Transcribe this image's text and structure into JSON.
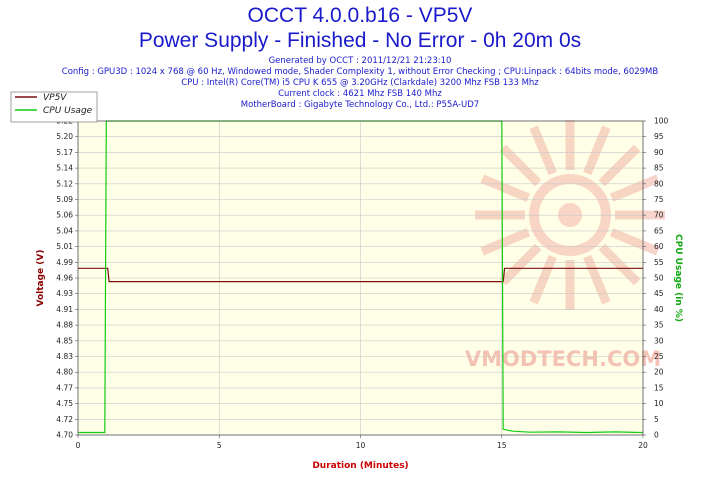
{
  "header": {
    "title": "OCCT 4.0.0.b16 - VP5V",
    "subtitle": "Power Supply - Finished - No Error - 0h 20m 0s",
    "info_lines": [
      "Generated by OCCT : 2011/12/21 21:23:10",
      "Config : GPU3D : 1024 x 768 @ 60 Hz, Windowed mode, Shader Complexity 1, without Error Checking ; CPU:Linpack : 64bits mode, 6029MB",
      "CPU : Intel(R) Core(TM) i5 CPU K 655 @ 3.20GHz (Clarkdale) 3200 Mhz FSB 133 Mhz",
      "Current clock : 4621 Mhz FSB 140 Mhz",
      "MotherBoard : Gigabyte Technology Co., Ltd.: P55A-UD7"
    ]
  },
  "watermark": {
    "text": "VMODTECH.COM",
    "color": "#f2b3a6"
  },
  "chart_data": {
    "type": "line",
    "xlabel": "Duration (Minutes)",
    "ylabel": "Voltage (V)",
    "y2label": "CPU Usage (in %)",
    "xlim": [
      0,
      20
    ],
    "ylim": [
      4.7,
      5.22
    ],
    "y2lim": [
      0,
      100
    ],
    "x_ticks": [
      0,
      5,
      10,
      15,
      20
    ],
    "y_ticks": [
      "4.70",
      "4.72",
      "4.75",
      "4.77",
      "4.80",
      "4.83",
      "4.85",
      "4.88",
      "4.91",
      "4.93",
      "4.96",
      "4.99",
      "5.01",
      "5.04",
      "5.06",
      "5.09",
      "5.12",
      "5.14",
      "5.17",
      "5.20",
      "5.22"
    ],
    "y2_ticks": [
      0,
      5,
      10,
      15,
      20,
      25,
      30,
      35,
      40,
      45,
      50,
      55,
      60,
      65,
      70,
      75,
      80,
      85,
      90,
      95,
      100
    ],
    "grid": true,
    "legend_position": "top-left",
    "colors": {
      "background": "#ffffe8",
      "grid": "#c8c8c8",
      "voltage": "#7a1010",
      "cpu": "#11cc11",
      "left_axis": "#8b0000",
      "right_axis": "#11aa11",
      "xlabel": "#cc0000"
    },
    "series": [
      {
        "name": "VP5V",
        "axis": "left",
        "x": [
          0,
          1.05,
          1.1,
          15.05,
          15.1,
          20
        ],
        "y": [
          4.976,
          4.976,
          4.954,
          4.954,
          4.976,
          4.976
        ]
      },
      {
        "name": "CPU Usage",
        "axis": "right",
        "x": [
          0,
          0.5,
          0.95,
          1.0,
          1.02,
          14.98,
          15.0,
          15.05,
          15.4,
          16,
          17,
          18,
          19,
          20
        ],
        "y": [
          0.8,
          0.8,
          0.8,
          100,
          100,
          100,
          100,
          1.8,
          1.2,
          0.9,
          1.0,
          0.8,
          1.0,
          0.8
        ]
      }
    ]
  }
}
